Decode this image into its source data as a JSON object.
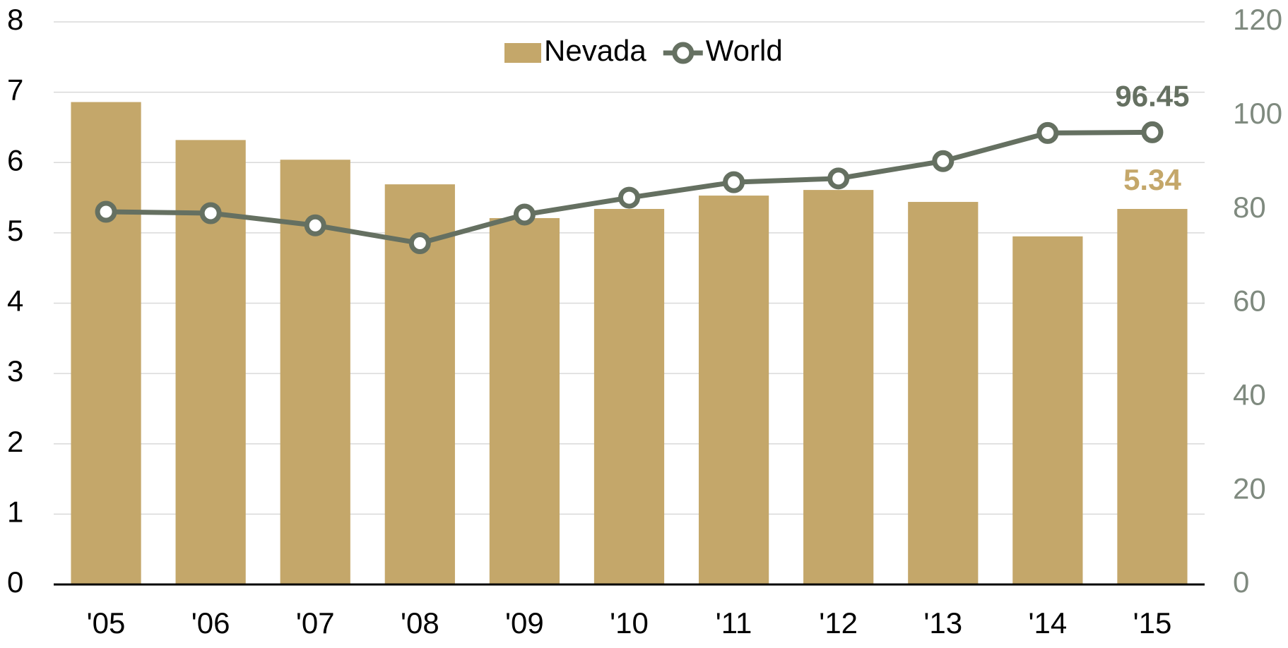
{
  "chart_data": {
    "type": "bar-line",
    "categories": [
      "'05",
      "'06",
      "'07",
      "'08",
      "'09",
      "'10",
      "'11",
      "'12",
      "'13",
      "'14",
      "'15"
    ],
    "series": [
      {
        "name": "Nevada",
        "type": "bar",
        "color": "#c4a76a",
        "axis": "y",
        "values": [
          6.86,
          6.32,
          6.04,
          5.69,
          5.21,
          5.34,
          5.53,
          5.61,
          5.44,
          4.95,
          5.34
        ],
        "value_labels": [
          null,
          null,
          null,
          null,
          null,
          null,
          null,
          null,
          null,
          null,
          "5.34"
        ]
      },
      {
        "name": "World",
        "type": "line",
        "color": "#657061",
        "axis": "y2",
        "values": [
          79.5,
          79.2,
          76.6,
          72.8,
          78.9,
          82.5,
          85.8,
          86.6,
          90.3,
          96.3,
          96.45
        ],
        "value_labels": [
          null,
          null,
          null,
          null,
          null,
          null,
          null,
          null,
          null,
          null,
          "96.45"
        ]
      }
    ],
    "ylim": [
      0,
      8
    ],
    "yticks": [
      0,
      1,
      2,
      3,
      4,
      5,
      6,
      7,
      8
    ],
    "y2lim": [
      0,
      120
    ],
    "y2ticks": [
      0,
      20,
      40,
      60,
      80,
      100,
      120
    ],
    "grid": true,
    "legend": "top"
  }
}
